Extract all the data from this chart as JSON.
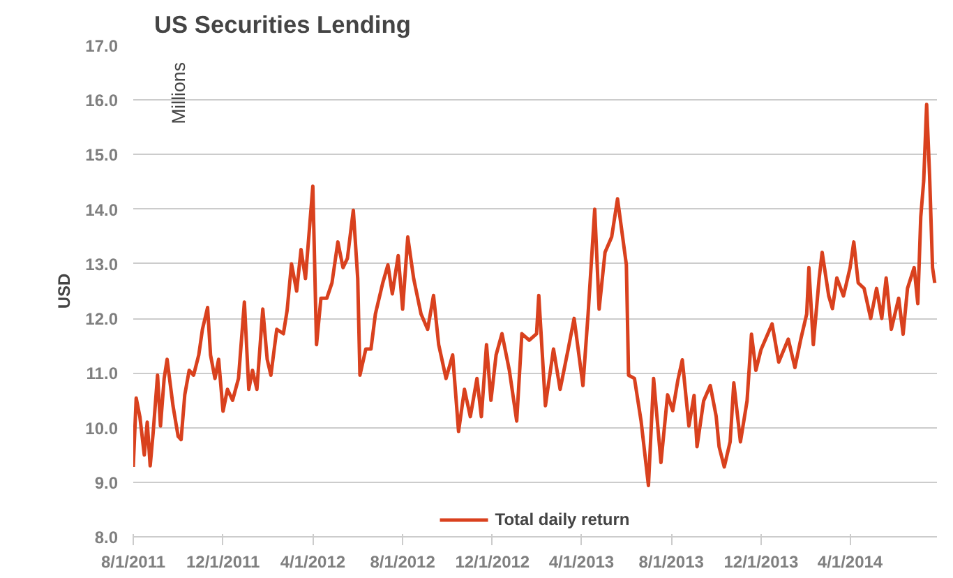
{
  "chart_data": {
    "type": "line",
    "title": "US Securities Lending",
    "ylabel": "USD",
    "annotations": [
      "Millions"
    ],
    "x": [
      "2011-08-01",
      "2011-08-05",
      "2011-08-10",
      "2011-08-16",
      "2011-08-20",
      "2011-08-24",
      "2011-08-28",
      "2011-09-03",
      "2011-09-07",
      "2011-09-12",
      "2011-09-16",
      "2011-09-24",
      "2011-10-01",
      "2011-10-05",
      "2011-10-10",
      "2011-10-16",
      "2011-10-22",
      "2011-10-29",
      "2011-11-03",
      "2011-11-10",
      "2011-11-14",
      "2011-11-20",
      "2011-11-25",
      "2011-12-01",
      "2011-12-07",
      "2011-12-14",
      "2011-12-22",
      "2011-12-30",
      "2012-01-05",
      "2012-01-10",
      "2012-01-16",
      "2012-01-24",
      "2012-01-30",
      "2012-02-04",
      "2012-02-12",
      "2012-02-21",
      "2012-02-26",
      "2012-03-03",
      "2012-03-10",
      "2012-03-16",
      "2012-03-22",
      "2012-04-01",
      "2012-04-06",
      "2012-04-12",
      "2012-04-20",
      "2012-04-27",
      "2012-05-05",
      "2012-05-12",
      "2012-05-18",
      "2012-05-26",
      "2012-06-01",
      "2012-06-04",
      "2012-06-12",
      "2012-06-19",
      "2012-06-25",
      "2012-07-05",
      "2012-07-12",
      "2012-07-18",
      "2012-07-26",
      "2012-08-01",
      "2012-08-08",
      "2012-08-16",
      "2012-08-26",
      "2012-09-04",
      "2012-09-12",
      "2012-09-19",
      "2012-09-29",
      "2012-10-08",
      "2012-10-16",
      "2012-10-24",
      "2012-11-01",
      "2012-11-10",
      "2012-11-16",
      "2012-11-23",
      "2012-11-29",
      "2012-12-06",
      "2012-12-14",
      "2012-12-24",
      "2013-01-03",
      "2013-01-10",
      "2013-01-20",
      "2013-01-30",
      "2013-02-02",
      "2013-02-11",
      "2013-02-22",
      "2013-03-03",
      "2013-03-14",
      "2013-03-22",
      "2013-04-03",
      "2013-04-10",
      "2013-04-19",
      "2013-04-25",
      "2013-05-03",
      "2013-05-12",
      "2013-05-20",
      "2013-06-01",
      "2013-06-04",
      "2013-06-12",
      "2013-06-21",
      "2013-07-01",
      "2013-07-08",
      "2013-07-18",
      "2013-07-27",
      "2013-08-03",
      "2013-08-10",
      "2013-08-16",
      "2013-08-25",
      "2013-09-01",
      "2013-09-05",
      "2013-09-14",
      "2013-09-23",
      "2013-10-01",
      "2013-10-05",
      "2013-10-12",
      "2013-10-20",
      "2013-10-25",
      "2013-11-03",
      "2013-11-12",
      "2013-11-18",
      "2013-11-24",
      "2013-12-01",
      "2013-12-16",
      "2013-12-25",
      "2014-01-07",
      "2014-01-16",
      "2014-01-24",
      "2014-02-01",
      "2014-02-04",
      "2014-02-10",
      "2014-02-18",
      "2014-02-22",
      "2014-03-03",
      "2014-03-08",
      "2014-03-14",
      "2014-03-23",
      "2014-04-01",
      "2014-04-06",
      "2014-04-12",
      "2014-04-20",
      "2014-04-29",
      "2014-05-07",
      "2014-05-14",
      "2014-05-20",
      "2014-05-27",
      "2014-06-06",
      "2014-06-12",
      "2014-06-18",
      "2014-06-27",
      "2014-07-02",
      "2014-07-06",
      "2014-07-10",
      "2014-07-14",
      "2014-07-18",
      "2014-07-22",
      "2014-07-25"
    ],
    "series": [
      {
        "name": "Total daily return",
        "color": "#d9411e",
        "values": [
          9.28,
          10.54,
          10.2,
          9.5,
          10.1,
          9.3,
          9.9,
          10.96,
          10.03,
          10.9,
          11.25,
          10.4,
          9.84,
          9.78,
          10.6,
          11.05,
          10.96,
          11.33,
          11.8,
          12.2,
          11.33,
          10.9,
          11.25,
          10.3,
          10.7,
          10.5,
          10.9,
          12.3,
          10.7,
          11.05,
          10.7,
          12.17,
          11.25,
          10.96,
          11.8,
          11.72,
          12.14,
          13.0,
          12.5,
          13.26,
          12.73,
          14.42,
          11.52,
          12.37,
          12.37,
          12.65,
          13.4,
          12.93,
          13.1,
          13.98,
          12.73,
          10.96,
          11.44,
          11.44,
          12.08,
          12.65,
          12.98,
          12.45,
          13.15,
          12.17,
          13.49,
          12.73,
          12.08,
          11.8,
          12.42,
          11.52,
          10.9,
          11.33,
          9.93,
          10.7,
          10.2,
          10.9,
          10.2,
          11.52,
          10.5,
          11.33,
          11.72,
          11.05,
          10.12,
          11.72,
          11.6,
          11.72,
          12.42,
          10.4,
          11.44,
          10.7,
          11.44,
          12.0,
          10.77,
          12.08,
          14.0,
          12.17,
          13.21,
          13.49,
          14.19,
          12.98,
          10.96,
          10.9,
          10.12,
          8.94,
          10.9,
          9.36,
          10.6,
          10.31,
          10.87,
          11.24,
          10.03,
          10.59,
          9.65,
          10.49,
          10.77,
          10.21,
          9.65,
          9.28,
          9.74,
          10.82,
          9.74,
          10.49,
          11.71,
          11.05,
          11.43,
          11.9,
          11.2,
          11.62,
          11.1,
          11.62,
          12.08,
          12.93,
          11.52,
          12.74,
          13.21,
          12.41,
          12.18,
          12.74,
          12.41,
          12.93,
          13.4,
          12.65,
          12.55,
          12.0,
          12.55,
          12.0,
          12.74,
          11.8,
          12.37,
          11.71,
          12.55,
          12.93,
          12.27,
          13.86,
          14.52,
          15.92,
          14.61,
          12.93,
          12.65
        ]
      }
    ],
    "xlim": [
      "2011-08-01",
      "2014-07-28"
    ],
    "xticks": [
      {
        "value": "2011-08-01",
        "label": "8/1/2011"
      },
      {
        "value": "2011-12-01",
        "label": "12/1/2011"
      },
      {
        "value": "2012-04-01",
        "label": "4/1/2012"
      },
      {
        "value": "2012-08-01",
        "label": "8/1/2012"
      },
      {
        "value": "2012-12-01",
        "label": "12/1/2012"
      },
      {
        "value": "2013-04-01",
        "label": "4/1/2013"
      },
      {
        "value": "2013-08-01",
        "label": "8/1/2013"
      },
      {
        "value": "2013-12-01",
        "label": "12/1/2013"
      },
      {
        "value": "2014-04-01",
        "label": "4/1/2014"
      }
    ],
    "ylim": [
      8,
      17
    ],
    "yticks": [
      {
        "value": 8,
        "label": "8.0"
      },
      {
        "value": 9,
        "label": "9.0"
      },
      {
        "value": 10,
        "label": "10.0"
      },
      {
        "value": 11,
        "label": "11.0"
      },
      {
        "value": 12,
        "label": "12.0"
      },
      {
        "value": 13,
        "label": "13.0"
      },
      {
        "value": 14,
        "label": "14.0"
      },
      {
        "value": 15,
        "label": "15.0"
      },
      {
        "value": 16,
        "label": "16.0"
      },
      {
        "value": 17,
        "label": "17.0"
      }
    ],
    "grid": "y",
    "legend": "bottom",
    "marker": "none",
    "line_style": "solid"
  }
}
